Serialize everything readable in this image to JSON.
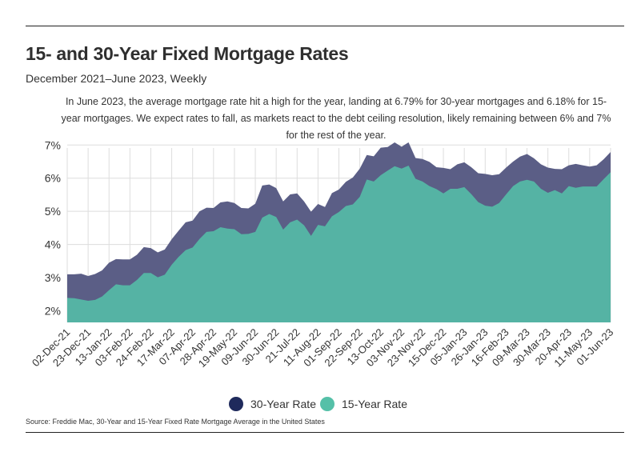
{
  "title": "15- and 30-Year Fixed Mortgage Rates",
  "subtitle": "December 2021–June 2023, Weekly",
  "annotation": "In June 2023, the average mortgage rate hit a high for the year, landing at 6.79% for 30-year mortgages and 6.18% for 15-year mortgages. We expect rates to fall, as markets react to the debt ceiling resolution, likely remaining between 6% and 7% for the rest of the year.",
  "source": "Source:  Freddie Mac, 30-Year  and 15-Year Fixed Rate Mortgage Average in the United States",
  "colors": {
    "rate30": "#5b5e86",
    "rate15": "#55b3a4",
    "dot30": "#1f2a5c",
    "dot15": "#55c0a8",
    "grid": "#dddddd"
  },
  "chart_data": {
    "type": "area",
    "xlabel": "",
    "ylabel": "",
    "ylim": [
      1.65,
      7.2
    ],
    "yticks": [
      2,
      3,
      4,
      5,
      6,
      7
    ],
    "ytick_labels": [
      "2%",
      "3%",
      "4%",
      "5%",
      "6%",
      "7%"
    ],
    "grid": "vertical-and-horizontal",
    "legend_position": "bottom-center",
    "x": [
      "02-Dec-21",
      "09-Dec-21",
      "16-Dec-21",
      "23-Dec-21",
      "30-Dec-21",
      "06-Jan-22",
      "13-Jan-22",
      "20-Jan-22",
      "27-Jan-22",
      "03-Feb-22",
      "10-Feb-22",
      "17-Feb-22",
      "24-Feb-22",
      "03-Mar-22",
      "10-Mar-22",
      "17-Mar-22",
      "24-Mar-22",
      "31-Mar-22",
      "07-Apr-22",
      "14-Apr-22",
      "21-Apr-22",
      "28-Apr-22",
      "05-May-22",
      "12-May-22",
      "19-May-22",
      "26-May-22",
      "02-Jun-22",
      "09-Jun-22",
      "16-Jun-22",
      "23-Jun-22",
      "30-Jun-22",
      "07-Jul-22",
      "14-Jul-22",
      "21-Jul-22",
      "28-Jul-22",
      "04-Aug-22",
      "11-Aug-22",
      "18-Aug-22",
      "25-Aug-22",
      "01-Sep-22",
      "08-Sep-22",
      "15-Sep-22",
      "22-Sep-22",
      "29-Sep-22",
      "06-Oct-22",
      "13-Oct-22",
      "20-Oct-22",
      "27-Oct-22",
      "03-Nov-22",
      "10-Nov-22",
      "17-Nov-22",
      "23-Nov-22",
      "01-Dec-22",
      "08-Dec-22",
      "15-Dec-22",
      "22-Dec-22",
      "29-Dec-22",
      "05-Jan-23",
      "12-Jan-23",
      "19-Jan-23",
      "26-Jan-23",
      "02-Feb-23",
      "09-Feb-23",
      "16-Feb-23",
      "23-Feb-23",
      "02-Mar-23",
      "09-Mar-23",
      "16-Mar-23",
      "23-Mar-23",
      "30-Mar-23",
      "06-Apr-23",
      "13-Apr-23",
      "20-Apr-23",
      "27-Apr-23",
      "04-May-23",
      "11-May-23",
      "18-May-23",
      "25-May-23",
      "01-Jun-23"
    ],
    "tick_every": 3,
    "series": [
      {
        "name": "30-Year Rate",
        "values": [
          3.1,
          3.1,
          3.12,
          3.05,
          3.11,
          3.22,
          3.45,
          3.56,
          3.55,
          3.55,
          3.69,
          3.92,
          3.89,
          3.76,
          3.85,
          4.16,
          4.42,
          4.67,
          4.72,
          5.0,
          5.11,
          5.1,
          5.27,
          5.3,
          5.25,
          5.1,
          5.09,
          5.23,
          5.78,
          5.81,
          5.7,
          5.3,
          5.51,
          5.54,
          5.3,
          4.99,
          5.22,
          5.13,
          5.55,
          5.66,
          5.89,
          6.02,
          6.29,
          6.7,
          6.66,
          6.92,
          6.94,
          7.08,
          6.95,
          7.08,
          6.61,
          6.58,
          6.49,
          6.33,
          6.31,
          6.27,
          6.42,
          6.48,
          6.33,
          6.15,
          6.13,
          6.09,
          6.12,
          6.32,
          6.5,
          6.65,
          6.73,
          6.6,
          6.42,
          6.32,
          6.28,
          6.27,
          6.39,
          6.43,
          6.39,
          6.35,
          6.39,
          6.57,
          6.79
        ]
      },
      {
        "name": "15-Year Rate",
        "values": [
          2.39,
          2.38,
          2.34,
          2.3,
          2.33,
          2.43,
          2.62,
          2.8,
          2.77,
          2.77,
          2.93,
          3.14,
          3.14,
          3.01,
          3.09,
          3.39,
          3.63,
          3.83,
          3.91,
          4.17,
          4.38,
          4.4,
          4.52,
          4.48,
          4.46,
          4.31,
          4.32,
          4.38,
          4.81,
          4.92,
          4.83,
          4.45,
          4.67,
          4.75,
          4.58,
          4.26,
          4.59,
          4.55,
          4.85,
          4.98,
          5.16,
          5.21,
          5.44,
          5.96,
          5.9,
          6.09,
          6.23,
          6.36,
          6.29,
          6.38,
          5.98,
          5.9,
          5.76,
          5.67,
          5.54,
          5.68,
          5.68,
          5.73,
          5.52,
          5.28,
          5.17,
          5.14,
          5.25,
          5.51,
          5.76,
          5.9,
          5.95,
          5.9,
          5.68,
          5.56,
          5.64,
          5.54,
          5.76,
          5.71,
          5.75,
          5.75,
          5.75,
          5.97,
          6.18
        ]
      }
    ]
  }
}
